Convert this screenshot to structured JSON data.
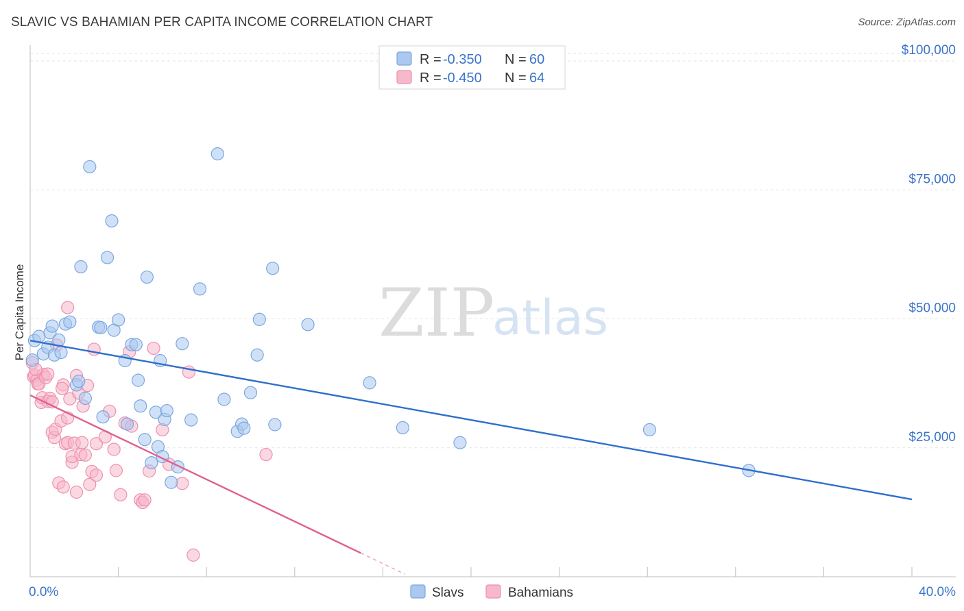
{
  "title": "SLAVIC VS BAHAMIAN PER CAPITA INCOME CORRELATION CHART",
  "source": "Source: ZipAtlas.com",
  "watermark": {
    "zip": "ZIP",
    "atlas": "atlas"
  },
  "colors": {
    "slavs_fill": "#aac8f0",
    "slavs_stroke": "#7aa7e0",
    "slavs_line": "#2f6fcb",
    "bahamians_fill": "#f6b8cb",
    "bahamians_stroke": "#ef8fae",
    "bahamians_line": "#e0608e",
    "tick_text": "#3a74c9",
    "grid": "#e3e3e3"
  },
  "legend": {
    "rows": [
      {
        "r_label": "R =",
        "r_value": "-0.350",
        "n_label": "N =",
        "n_value": "60"
      },
      {
        "r_label": "R =",
        "r_value": "-0.450",
        "n_label": "N =",
        "n_value": "64"
      }
    ]
  },
  "chart_data": {
    "type": "scatter",
    "title": "SLAVIC VS BAHAMIAN PER CAPITA INCOME CORRELATION CHART",
    "xlabel": "",
    "ylabel": "Per Capita Income",
    "xlim": [
      0,
      40
    ],
    "ylim": [
      0,
      102000
    ],
    "x_tick_labels": [
      {
        "value": 0,
        "label": "0.0%"
      },
      {
        "value": 40,
        "label": "40.0%"
      }
    ],
    "y_tick_labels": [
      {
        "value": 25000,
        "label": "$25,000"
      },
      {
        "value": 50000,
        "label": "$50,000"
      },
      {
        "value": 75000,
        "label": "$75,000"
      },
      {
        "value": 100000,
        "label": "$100,000"
      }
    ],
    "x_minor_ticks": [
      4,
      8,
      12,
      16,
      20,
      24,
      28,
      32,
      36,
      40
    ],
    "grid": true,
    "series": [
      {
        "name": "Slavs",
        "trend": {
          "x0": 0,
          "y0": 45800,
          "x1": 40,
          "y1": 15000
        },
        "points": [
          [
            0.2,
            45800
          ],
          [
            0.4,
            46600
          ],
          [
            0.6,
            43200
          ],
          [
            0.8,
            44500
          ],
          [
            0.9,
            47300
          ],
          [
            1.0,
            48600
          ],
          [
            1.1,
            43000
          ],
          [
            1.3,
            45900
          ],
          [
            1.4,
            43500
          ],
          [
            1.6,
            49000
          ],
          [
            1.8,
            49400
          ],
          [
            2.1,
            37200
          ],
          [
            2.2,
            37900
          ],
          [
            2.3,
            60100
          ],
          [
            2.5,
            34600
          ],
          [
            2.7,
            79500
          ],
          [
            3.1,
            48400
          ],
          [
            3.2,
            48300
          ],
          [
            3.3,
            31000
          ],
          [
            3.5,
            61900
          ],
          [
            3.7,
            69000
          ],
          [
            3.8,
            47800
          ],
          [
            4.0,
            49800
          ],
          [
            4.3,
            41900
          ],
          [
            4.4,
            29600
          ],
          [
            4.6,
            45000
          ],
          [
            4.8,
            45000
          ],
          [
            4.9,
            38100
          ],
          [
            5.0,
            33100
          ],
          [
            5.2,
            26600
          ],
          [
            5.3,
            58100
          ],
          [
            5.5,
            22100
          ],
          [
            5.7,
            31900
          ],
          [
            5.8,
            25200
          ],
          [
            5.9,
            41900
          ],
          [
            6.0,
            23300
          ],
          [
            6.1,
            30500
          ],
          [
            6.2,
            32200
          ],
          [
            6.4,
            18300
          ],
          [
            6.7,
            21300
          ],
          [
            6.9,
            45200
          ],
          [
            7.3,
            30400
          ],
          [
            7.7,
            55800
          ],
          [
            8.5,
            82000
          ],
          [
            8.8,
            34400
          ],
          [
            9.4,
            28200
          ],
          [
            9.6,
            29600
          ],
          [
            9.7,
            28800
          ],
          [
            10.0,
            35700
          ],
          [
            10.3,
            43000
          ],
          [
            10.4,
            49900
          ],
          [
            11.0,
            59800
          ],
          [
            11.1,
            29500
          ],
          [
            12.6,
            48900
          ],
          [
            15.4,
            37600
          ],
          [
            16.9,
            28900
          ],
          [
            19.5,
            26000
          ],
          [
            28.1,
            28500
          ],
          [
            32.6,
            20600
          ],
          [
            0.1,
            42000
          ]
        ]
      },
      {
        "name": "Bahamians",
        "trend": {
          "x0": 0,
          "y0": 35200,
          "x1": 15.0,
          "y1": 4600,
          "dash_to_x": 17.0,
          "dash_to_y": 500
        },
        "points": [
          [
            0.1,
            41500
          ],
          [
            0.15,
            38800
          ],
          [
            0.2,
            39100
          ],
          [
            0.3,
            38100
          ],
          [
            0.35,
            37400
          ],
          [
            0.4,
            37400
          ],
          [
            0.5,
            33800
          ],
          [
            0.55,
            34700
          ],
          [
            0.6,
            39200
          ],
          [
            0.7,
            38600
          ],
          [
            0.8,
            39300
          ],
          [
            0.8,
            34000
          ],
          [
            0.9,
            34600
          ],
          [
            1.0,
            33900
          ],
          [
            1.0,
            28000
          ],
          [
            1.1,
            27000
          ],
          [
            1.15,
            28600
          ],
          [
            1.2,
            44900
          ],
          [
            1.3,
            18200
          ],
          [
            1.4,
            30200
          ],
          [
            1.5,
            37200
          ],
          [
            1.5,
            17400
          ],
          [
            1.6,
            25800
          ],
          [
            1.7,
            26000
          ],
          [
            1.7,
            30800
          ],
          [
            1.7,
            52200
          ],
          [
            1.8,
            34500
          ],
          [
            1.9,
            22200
          ],
          [
            1.9,
            23300
          ],
          [
            2.0,
            25900
          ],
          [
            2.1,
            16400
          ],
          [
            2.1,
            39000
          ],
          [
            2.2,
            35600
          ],
          [
            2.3,
            23700
          ],
          [
            2.35,
            26000
          ],
          [
            2.4,
            33100
          ],
          [
            2.5,
            23600
          ],
          [
            2.6,
            37100
          ],
          [
            2.7,
            17900
          ],
          [
            2.8,
            20400
          ],
          [
            2.9,
            44100
          ],
          [
            3.0,
            25800
          ],
          [
            3.0,
            19700
          ],
          [
            3.4,
            27100
          ],
          [
            3.6,
            32100
          ],
          [
            3.8,
            24700
          ],
          [
            3.9,
            20600
          ],
          [
            4.1,
            15900
          ],
          [
            4.3,
            29800
          ],
          [
            4.5,
            43600
          ],
          [
            4.6,
            29200
          ],
          [
            5.0,
            14900
          ],
          [
            5.1,
            14400
          ],
          [
            5.2,
            14900
          ],
          [
            5.4,
            20500
          ],
          [
            5.6,
            44300
          ],
          [
            6.0,
            28500
          ],
          [
            6.3,
            21800
          ],
          [
            6.9,
            18100
          ],
          [
            7.2,
            39700
          ],
          [
            7.4,
            4200
          ],
          [
            10.7,
            23700
          ],
          [
            0.25,
            40200
          ],
          [
            1.45,
            36500
          ]
        ]
      }
    ]
  },
  "bottom_legend": [
    {
      "label": "Slavs"
    },
    {
      "label": "Bahamians"
    }
  ]
}
